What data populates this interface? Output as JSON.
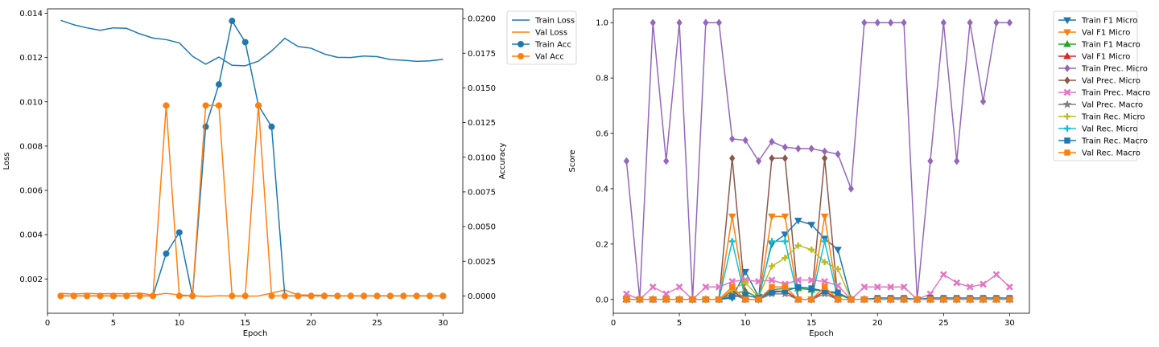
{
  "chart_data": [
    {
      "type": "line",
      "xlabel": "Epoch",
      "ylabel": "Loss",
      "y2label": "Accuracy",
      "xlim": [
        0,
        31.5
      ],
      "ylim": [
        0.00045,
        0.0142
      ],
      "y2lim": [
        -0.00125,
        0.0207
      ],
      "xticks": [
        0,
        5,
        10,
        15,
        20,
        25,
        30
      ],
      "yticks": [
        0.002,
        0.004,
        0.006,
        0.008,
        0.01,
        0.012,
        0.014
      ],
      "y2ticks": [
        0.0,
        0.0025,
        0.005,
        0.0075,
        0.01,
        0.0125,
        0.015,
        0.0175,
        0.02
      ],
      "ytick_labels": [
        "0.002",
        "0.004",
        "0.006",
        "0.008",
        "0.010",
        "0.012",
        "0.014"
      ],
      "y2tick_labels": [
        "0.0000",
        "0.0025",
        "0.0050",
        "0.0075",
        "0.0100",
        "0.0125",
        "0.0150",
        "0.0175",
        "0.0200"
      ],
      "legend": "outside-right",
      "x": [
        1,
        2,
        3,
        4,
        5,
        6,
        7,
        8,
        9,
        10,
        11,
        12,
        13,
        14,
        15,
        16,
        17,
        18,
        19,
        20,
        21,
        22,
        23,
        24,
        25,
        26,
        27,
        28,
        29,
        30
      ],
      "series": [
        {
          "name": "Train Loss",
          "axis": "left",
          "color": "#1f77b4",
          "marker": "none",
          "values": [
            0.01368,
            0.01348,
            0.01334,
            0.01323,
            0.01334,
            0.01332,
            0.01307,
            0.01288,
            0.01281,
            0.01266,
            0.01206,
            0.0117,
            0.01202,
            0.01165,
            0.01163,
            0.01184,
            0.0123,
            0.01287,
            0.0125,
            0.01242,
            0.01216,
            0.01201,
            0.012,
            0.01207,
            0.01204,
            0.01191,
            0.01188,
            0.01183,
            0.01185,
            0.01192
          ]
        },
        {
          "name": "Val Loss",
          "axis": "left",
          "color": "#ff7f0e",
          "marker": "none",
          "values": [
            0.00135,
            0.00132,
            0.00135,
            0.00133,
            0.00134,
            0.00133,
            0.00136,
            0.00127,
            0.00135,
            0.00128,
            0.00124,
            0.00121,
            0.00124,
            0.00123,
            0.00122,
            0.00123,
            0.00136,
            0.0015,
            0.00128,
            0.00127,
            0.00126,
            0.00124,
            0.00124,
            0.00124,
            0.00124,
            0.00124,
            0.00124,
            0.00124,
            0.00124,
            0.00124
          ]
        },
        {
          "name": "Train Acc",
          "axis": "right",
          "color": "#1f77b4",
          "marker": "circle",
          "values": [
            0,
            0,
            0,
            0,
            0,
            0,
            0,
            0,
            0.00305,
            0.00458,
            0,
            0.0122,
            0.01525,
            0.01983,
            0.0183,
            0.01373,
            0.0122,
            0,
            0,
            0,
            0,
            0,
            0,
            0,
            0,
            0,
            0,
            0,
            0,
            0
          ]
        },
        {
          "name": "Val Acc",
          "axis": "right",
          "color": "#ff7f0e",
          "marker": "circle",
          "values": [
            0,
            0,
            0,
            0,
            0,
            0,
            0,
            0,
            0.01373,
            0,
            0,
            0.01373,
            0.01373,
            0,
            0,
            0.01373,
            0,
            0,
            0,
            0,
            0,
            0,
            0,
            0,
            0,
            0,
            0,
            0,
            0,
            0
          ]
        }
      ]
    },
    {
      "type": "line",
      "xlabel": "Epoch",
      "ylabel": "Score",
      "xlim": [
        0,
        31.5
      ],
      "ylim": [
        -0.05,
        1.05
      ],
      "xticks": [
        0,
        5,
        10,
        15,
        20,
        25,
        30
      ],
      "yticks": [
        0.0,
        0.2,
        0.4,
        0.6,
        0.8,
        1.0
      ],
      "ytick_labels": [
        "0.0",
        "0.2",
        "0.4",
        "0.6",
        "0.8",
        "1.0"
      ],
      "legend": "outside-right",
      "x": [
        1,
        2,
        3,
        4,
        5,
        6,
        7,
        8,
        9,
        10,
        11,
        12,
        13,
        14,
        15,
        16,
        17,
        18,
        19,
        20,
        21,
        22,
        23,
        24,
        25,
        26,
        27,
        28,
        29,
        30
      ],
      "series": [
        {
          "name": "Train F1 Micro",
          "color": "#1f77b4",
          "marker": "tri-down",
          "values": [
            0,
            0,
            0,
            0,
            0,
            0,
            0,
            0,
            0.005,
            0.1,
            0.01,
            0.2,
            0.235,
            0.285,
            0.27,
            0.22,
            0.18,
            0,
            0,
            0,
            0,
            0,
            0,
            0,
            0,
            0,
            0,
            0,
            0,
            0
          ]
        },
        {
          "name": "Val F1 Micro",
          "color": "#ff7f0e",
          "marker": "tri-down",
          "values": [
            0,
            0,
            0,
            0,
            0,
            0,
            0,
            0,
            0.3,
            0,
            0,
            0.3,
            0.3,
            0,
            0,
            0.3,
            0,
            0,
            0,
            0,
            0,
            0,
            0,
            0,
            0,
            0,
            0,
            0,
            0,
            0
          ]
        },
        {
          "name": "Train F1 Macro",
          "color": "#2ca02c",
          "marker": "tri-up",
          "values": [
            0,
            0,
            0,
            0,
            0,
            0,
            0,
            0,
            0.02,
            0.03,
            0.005,
            0.035,
            0.04,
            0.04,
            0.035,
            0.03,
            0.02,
            0,
            0,
            0,
            0,
            0,
            0,
            0,
            0,
            0,
            0,
            0,
            0,
            0
          ]
        },
        {
          "name": "Val F1 Micro",
          "color": "#d62728",
          "marker": "tri-up",
          "values": [
            0,
            0,
            0,
            0,
            0,
            0,
            0,
            0,
            0.03,
            0,
            0,
            0.03,
            0.03,
            0,
            0,
            0.03,
            0,
            0,
            0,
            0,
            0,
            0,
            0,
            0,
            0,
            0,
            0,
            0,
            0,
            0
          ]
        },
        {
          "name": "Train Prec. Micro",
          "color": "#9467bd",
          "marker": "diamond",
          "values": [
            0.5,
            0,
            1.0,
            0.5,
            1.0,
            0,
            1.0,
            1.0,
            0.58,
            0.575,
            0.5,
            0.57,
            0.55,
            0.545,
            0.545,
            0.535,
            0.525,
            0.4,
            1.0,
            1.0,
            1.0,
            1.0,
            0,
            0.5,
            1.0,
            0.5,
            1.0,
            0.715,
            1.0,
            1.0
          ]
        },
        {
          "name": "Val Prec. Micro",
          "color": "#8c564b",
          "marker": "diamond",
          "values": [
            0,
            0,
            0,
            0,
            0,
            0,
            0,
            0,
            0.51,
            0,
            0,
            0.51,
            0.51,
            0,
            0,
            0.51,
            0,
            0,
            0,
            0,
            0,
            0,
            0,
            0,
            0,
            0,
            0,
            0,
            0,
            0
          ]
        },
        {
          "name": "Train Prec. Macro",
          "color": "#e377c2",
          "marker": "x",
          "values": [
            0.02,
            0,
            0.045,
            0.02,
            0.045,
            0,
            0.045,
            0.045,
            0.065,
            0.07,
            0.065,
            0.07,
            0.055,
            0.07,
            0.07,
            0.065,
            0.05,
            0,
            0.045,
            0.045,
            0.045,
            0.045,
            0,
            0.02,
            0.09,
            0.06,
            0.045,
            0.055,
            0.09,
            0.045
          ]
        },
        {
          "name": "Val Prec. Macro",
          "color": "#7f7f7f",
          "marker": "star",
          "values": [
            0,
            0,
            0,
            0,
            0,
            0,
            0,
            0,
            0.02,
            0,
            0,
            0.02,
            0.02,
            0,
            0,
            0.02,
            0,
            0,
            0,
            0,
            0,
            0,
            0,
            0,
            0,
            0,
            0,
            0,
            0,
            0
          ]
        },
        {
          "name": "Train Rec. Micro",
          "color": "#bcbd22",
          "marker": "plus",
          "values": [
            0,
            0,
            0,
            0,
            0,
            0,
            0,
            0,
            0.035,
            0.06,
            0.01,
            0.12,
            0.15,
            0.195,
            0.18,
            0.135,
            0.11,
            0,
            0,
            0,
            0,
            0,
            0,
            0,
            0,
            0,
            0,
            0,
            0,
            0
          ]
        },
        {
          "name": "Val Rec. Micro",
          "color": "#17becf",
          "marker": "plus",
          "values": [
            0,
            0,
            0,
            0,
            0,
            0,
            0,
            0,
            0.21,
            0,
            0,
            0.21,
            0.21,
            0,
            0,
            0.21,
            0,
            0,
            0,
            0,
            0,
            0,
            0,
            0,
            0,
            0,
            0,
            0,
            0,
            0
          ]
        },
        {
          "name": "Train Rec. Macro",
          "color": "#1f77b4",
          "marker": "square",
          "values": [
            0,
            0,
            0,
            0,
            0,
            0,
            0,
            0,
            0.01,
            0.015,
            0.005,
            0.025,
            0.03,
            0.045,
            0.04,
            0.03,
            0.025,
            0,
            0,
            0.005,
            0.005,
            0.005,
            0,
            0.005,
            0.005,
            0.005,
            0.005,
            0.005,
            0.005,
            0.005
          ]
        },
        {
          "name": "Val Rec. Macro",
          "color": "#ff7f0e",
          "marker": "square",
          "values": [
            0,
            0,
            0,
            0,
            0,
            0,
            0,
            0,
            0.045,
            0,
            0,
            0.045,
            0.045,
            0,
            0,
            0.045,
            0,
            0,
            0,
            0,
            0,
            0,
            0,
            0,
            0,
            0,
            0,
            0,
            0,
            0
          ]
        }
      ]
    }
  ]
}
